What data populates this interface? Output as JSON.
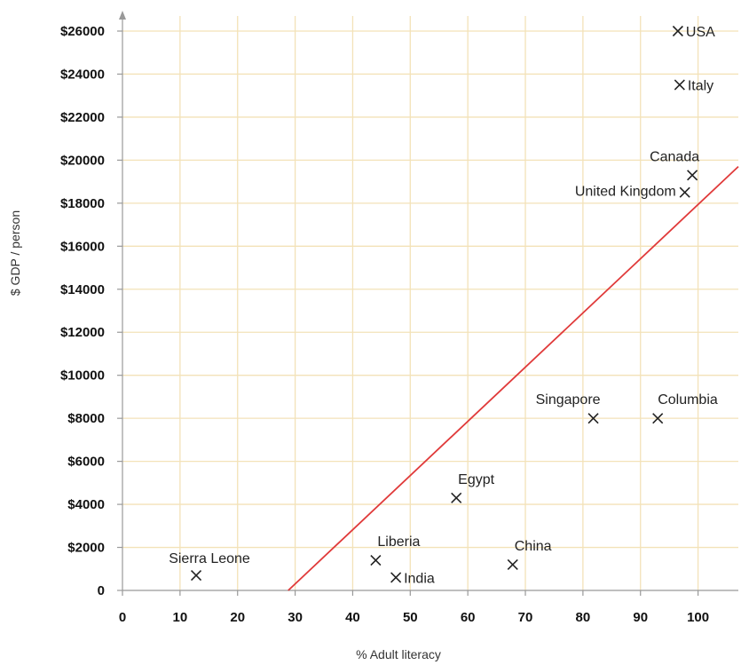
{
  "chart_data": {
    "type": "scatter",
    "xlabel": "% Adult literacy",
    "ylabel": "$ GDP / person",
    "xlim": [
      0,
      107
    ],
    "ylim": [
      0,
      26000
    ],
    "x_ticks": [
      0,
      10,
      20,
      30,
      40,
      50,
      60,
      70,
      80,
      90,
      100
    ],
    "x_tick_labels": [
      "0",
      "10",
      "20",
      "30",
      "40",
      "50",
      "60",
      "70",
      "80",
      "90",
      "100"
    ],
    "y_ticks": [
      0,
      2000,
      4000,
      6000,
      8000,
      10000,
      12000,
      14000,
      16000,
      18000,
      20000,
      22000,
      24000,
      26000
    ],
    "y_tick_labels": [
      "0",
      "$2000",
      "$4000",
      "$6000",
      "$8000",
      "$10000",
      "$12000",
      "$14000",
      "$16000",
      "$18000",
      "$20000",
      "$22000",
      "$24000",
      "$26000"
    ],
    "grid": true,
    "grid_color": "#f3e2b8",
    "marker": "x",
    "points": [
      {
        "label": "USA",
        "x": 96.5,
        "y": 26000,
        "label_pos": "right"
      },
      {
        "label": "Italy",
        "x": 96.8,
        "y": 23500,
        "label_pos": "right"
      },
      {
        "label": "Canada",
        "x": 99,
        "y": 19300,
        "label_pos": "top-left"
      },
      {
        "label": "United Kingdom",
        "x": 97.7,
        "y": 18500,
        "label_pos": "left"
      },
      {
        "label": "Singapore",
        "x": 81.8,
        "y": 8000,
        "label_pos": "top-left"
      },
      {
        "label": "Columbia",
        "x": 93,
        "y": 8000,
        "label_pos": "top-right"
      },
      {
        "label": "Egypt",
        "x": 58,
        "y": 4300,
        "label_pos": "top-right"
      },
      {
        "label": "Liberia",
        "x": 44,
        "y": 1400,
        "label_pos": "top-right"
      },
      {
        "label": "India",
        "x": 47.5,
        "y": 600,
        "label_pos": "right"
      },
      {
        "label": "China",
        "x": 67.8,
        "y": 1200,
        "label_pos": "top-right"
      },
      {
        "label": "Sierra Leone",
        "x": 12.8,
        "y": 700,
        "label_pos": "top"
      }
    ],
    "trend_line": {
      "x1": 28.8,
      "y1": 0,
      "x2": 107,
      "y2": 19700,
      "color": "#e03a3a"
    }
  }
}
